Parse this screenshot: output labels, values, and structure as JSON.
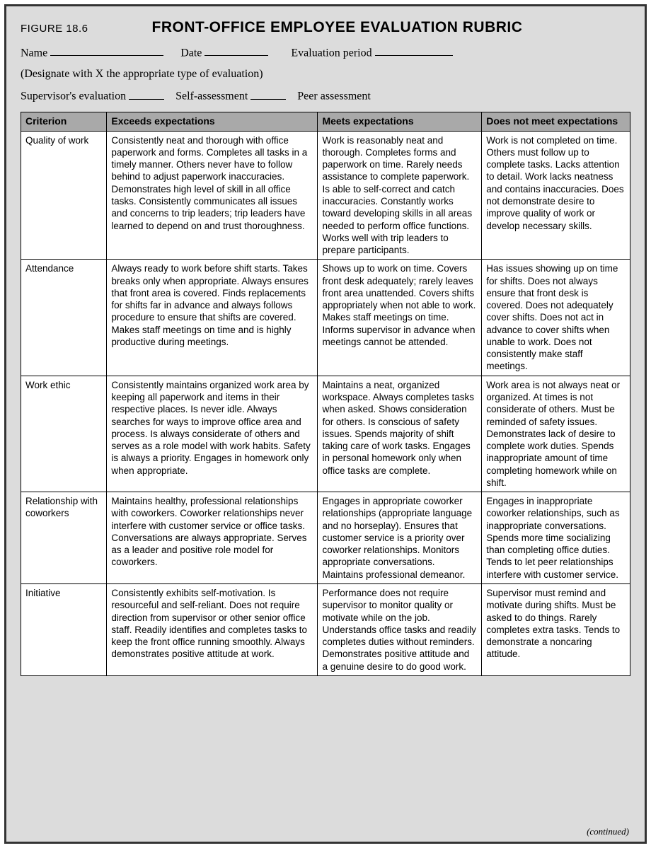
{
  "figure_label": "FIGURE 18.6",
  "title": "FRONT-OFFICE EMPLOYEE EVALUATION RUBRIC",
  "form": {
    "name_label": "Name",
    "date_label": "Date",
    "eval_period_label": "Evaluation period",
    "designate_text": "(Designate with X the appropriate type of evaluation)",
    "supervisor_label": "Supervisor's evaluation",
    "self_label": "Self-assessment",
    "peer_label": "Peer assessment"
  },
  "table": {
    "columns": [
      "Criterion",
      "Exceeds expectations",
      "Meets expectations",
      "Does not meet expectations"
    ],
    "rows": [
      {
        "criterion": "Quality of work",
        "exceeds": "Consistently neat and thorough with office paperwork and forms. Completes all tasks in a timely manner. Others never have to follow behind to adjust paperwork inaccuracies. Demonstrates high level of skill in all office tasks. Consistently communicates all issues and concerns to trip leaders; trip leaders have learned to depend on and trust thoroughness.",
        "meets": "Work is reasonably neat and thorough. Completes forms and paperwork on time. Rarely needs assistance to complete paperwork. Is able to self-correct and catch inaccuracies. Constantly works toward developing skills in all areas needed to perform office functions. Works well with trip leaders to prepare participants.",
        "doesnot": "Work is not completed on time. Others must follow up to complete tasks. Lacks attention to detail. Work lacks neatness and contains inaccuracies. Does not demonstrate desire to improve quality of work or develop necessary skills."
      },
      {
        "criterion": "Attendance",
        "exceeds": "Always ready to work before shift starts. Takes breaks only when appropriate. Always ensures that front area is covered. Finds replacements for shifts far in advance and always follows procedure to ensure that shifts are covered. Makes staff meetings on time and is highly productive during meetings.",
        "meets": "Shows up to work on time. Covers front desk adequately; rarely leaves front area unattended. Covers shifts appropriately when not able to work. Makes staff meetings on time. Informs supervisor in advance when meetings cannot be attended.",
        "doesnot": "Has issues showing up on time for shifts. Does not always ensure that front desk is covered. Does not adequately cover shifts. Does not act in advance to cover shifts when unable to work. Does not consistently make staff meetings."
      },
      {
        "criterion": "Work ethic",
        "exceeds": "Consistently maintains organized work area by keeping all paperwork and items in their respective places. Is never idle. Always searches for ways to improve office area and process. Is always considerate of others and serves as a role model with work habits. Safety is always a priority. Engages in homework only when appropriate.",
        "meets": "Maintains a neat, organized workspace. Always completes tasks when asked. Shows consideration for others. Is conscious of safety issues. Spends majority of shift taking care of work tasks. Engages in personal homework only when office tasks are complete.",
        "doesnot": "Work area is not always neat or organized. At times is not considerate of others. Must be reminded of safety issues. Demonstrates lack of desire to complete work duties. Spends inappropriate amount of time completing homework while on shift."
      },
      {
        "criterion": "Relationship with coworkers",
        "exceeds": "Maintains healthy, professional relationships with coworkers. Coworker relationships never interfere with customer service or office tasks. Conversations are always appropriate. Serves as a leader and positive role model for coworkers.",
        "meets": "Engages in appropriate coworker relationships (appropriate language and no horseplay). Ensures that customer service is a priority over coworker relationships. Monitors appropriate conversations. Maintains professional demeanor.",
        "doesnot": "Engages in inappropriate coworker relationships, such as inappropriate conversations. Spends more time socializing than completing office duties. Tends to let peer relationships interfere with customer service."
      },
      {
        "criterion": "Initiative",
        "exceeds": "Consistently exhibits self-motivation. Is resourceful and self-reliant. Does not require direction from supervisor or other senior office staff. Readily identifies and completes tasks to keep the front office running smoothly. Always demonstrates positive attitude at work.",
        "meets": "Performance does not require supervisor to monitor quality or motivate while on the job. Understands office tasks and readily completes duties without reminders. Demonstrates positive attitude and a genuine desire to do good work.",
        "doesnot": "Supervisor must remind and motivate during shifts. Must be asked to do things. Rarely completes extra tasks. Tends to demonstrate a noncaring attitude."
      }
    ]
  },
  "continued_text": "(continued)",
  "style": {
    "outer_border_color": "#333333",
    "page_bg": "#dcdcdc",
    "header_bg": "#a9a9a9",
    "cell_bg": "#ffffff",
    "border_color": "#000000",
    "title_fontsize": 21,
    "body_fontsize": 13.5
  }
}
